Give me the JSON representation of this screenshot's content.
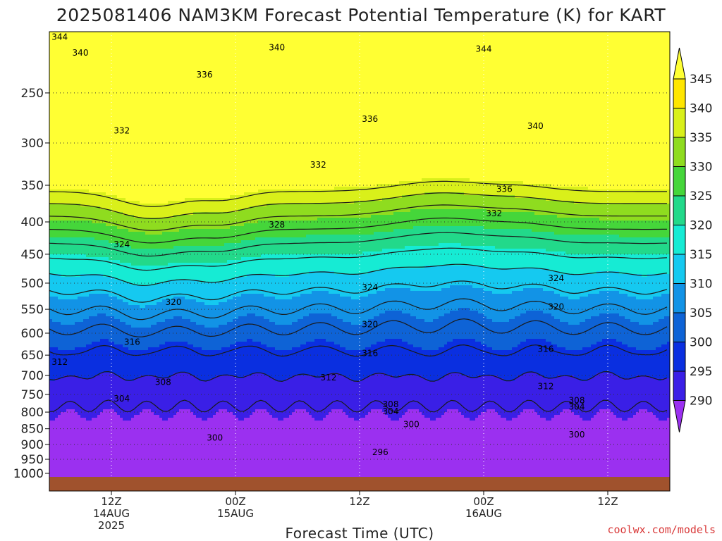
{
  "chart_data": {
    "type": "heatmap",
    "title": "2025081406 NAM3KM Forecast Potential Temperature (K) for KART",
    "xlabel": "Forecast Time (UTC)",
    "ylabel": "",
    "credit": "coolwx.com/models",
    "x_ticks": [
      {
        "hour": 6,
        "lines": [
          "12Z",
          "14AUG",
          "2025"
        ]
      },
      {
        "hour": 18,
        "lines": [
          "00Z",
          "15AUG"
        ]
      },
      {
        "hour": 30,
        "lines": [
          "12Z"
        ]
      },
      {
        "hour": 42,
        "lines": [
          "00Z",
          "16AUG"
        ]
      },
      {
        "hour": 54,
        "lines": [
          "12Z"
        ]
      }
    ],
    "xlim": [
      0,
      60
    ],
    "y_ticks": [
      "250",
      "300",
      "350",
      "400",
      "450",
      "500",
      "550",
      "600",
      "650",
      "700",
      "750",
      "800",
      "850",
      "900",
      "950",
      "1000"
    ],
    "y_values": [
      250,
      300,
      350,
      400,
      450,
      500,
      550,
      600,
      650,
      700,
      750,
      800,
      850,
      900,
      950,
      1000
    ],
    "ylim": [
      200,
      1013
    ],
    "y_scale": "log",
    "grid": true,
    "colorbar": {
      "labels": [
        "345",
        "340",
        "335",
        "330",
        "325",
        "320",
        "315",
        "310",
        "305",
        "300",
        "295",
        "290"
      ],
      "values": [
        345,
        340,
        335,
        330,
        325,
        320,
        315,
        310,
        305,
        300,
        295,
        290
      ],
      "colors": [
        "#ffe600",
        "#d9f01a",
        "#8fdc1f",
        "#45d63a",
        "#22d98a",
        "#16ebd4",
        "#15c9f0",
        "#1293e6",
        "#0e63d6",
        "#0a2fe0",
        "#3a1fe6",
        "#9b30f0"
      ],
      "top_color": "#ffff33",
      "bottom_color": "#9b30f0"
    },
    "contour_levels": [
      344,
      340,
      336,
      332,
      328,
      324,
      320,
      316,
      312,
      308,
      304,
      300,
      296
    ],
    "contour_labels": [
      {
        "text": "344",
        "hour": 1,
        "p": 204
      },
      {
        "text": "344",
        "hour": 42,
        "p": 213
      },
      {
        "text": "340",
        "hour": 3,
        "p": 216
      },
      {
        "text": "340",
        "hour": 22,
        "p": 212
      },
      {
        "text": "340",
        "hour": 47,
        "p": 282
      },
      {
        "text": "336",
        "hour": 15,
        "p": 234
      },
      {
        "text": "336",
        "hour": 31,
        "p": 275
      },
      {
        "text": "336",
        "hour": 44,
        "p": 355
      },
      {
        "text": "332",
        "hour": 7,
        "p": 287
      },
      {
        "text": "332",
        "hour": 26,
        "p": 325
      },
      {
        "text": "332",
        "hour": 43,
        "p": 388
      },
      {
        "text": "328",
        "hour": 22,
        "p": 404
      },
      {
        "text": "324",
        "hour": 7,
        "p": 434
      },
      {
        "text": "324",
        "hour": 31,
        "p": 508
      },
      {
        "text": "324",
        "hour": 49,
        "p": 491
      },
      {
        "text": "320",
        "hour": 12,
        "p": 536
      },
      {
        "text": "320",
        "hour": 31,
        "p": 581
      },
      {
        "text": "320",
        "hour": 49,
        "p": 545
      },
      {
        "text": "316",
        "hour": 8,
        "p": 620
      },
      {
        "text": "316",
        "hour": 31,
        "p": 646
      },
      {
        "text": "316",
        "hour": 48,
        "p": 636
      },
      {
        "text": "312",
        "hour": 1,
        "p": 667
      },
      {
        "text": "312",
        "hour": 27,
        "p": 705
      },
      {
        "text": "312",
        "hour": 48,
        "p": 728
      },
      {
        "text": "308",
        "hour": 11,
        "p": 717
      },
      {
        "text": "308",
        "hour": 33,
        "p": 778
      },
      {
        "text": "308",
        "hour": 51,
        "p": 767
      },
      {
        "text": "304",
        "hour": 7,
        "p": 762
      },
      {
        "text": "304",
        "hour": 33,
        "p": 798
      },
      {
        "text": "304",
        "hour": 51,
        "p": 785
      },
      {
        "text": "300",
        "hour": 16,
        "p": 878
      },
      {
        "text": "300",
        "hour": 35,
        "p": 837
      },
      {
        "text": "300",
        "hour": 51,
        "p": 868
      },
      {
        "text": "296",
        "hour": 32,
        "p": 926
      }
    ]
  }
}
